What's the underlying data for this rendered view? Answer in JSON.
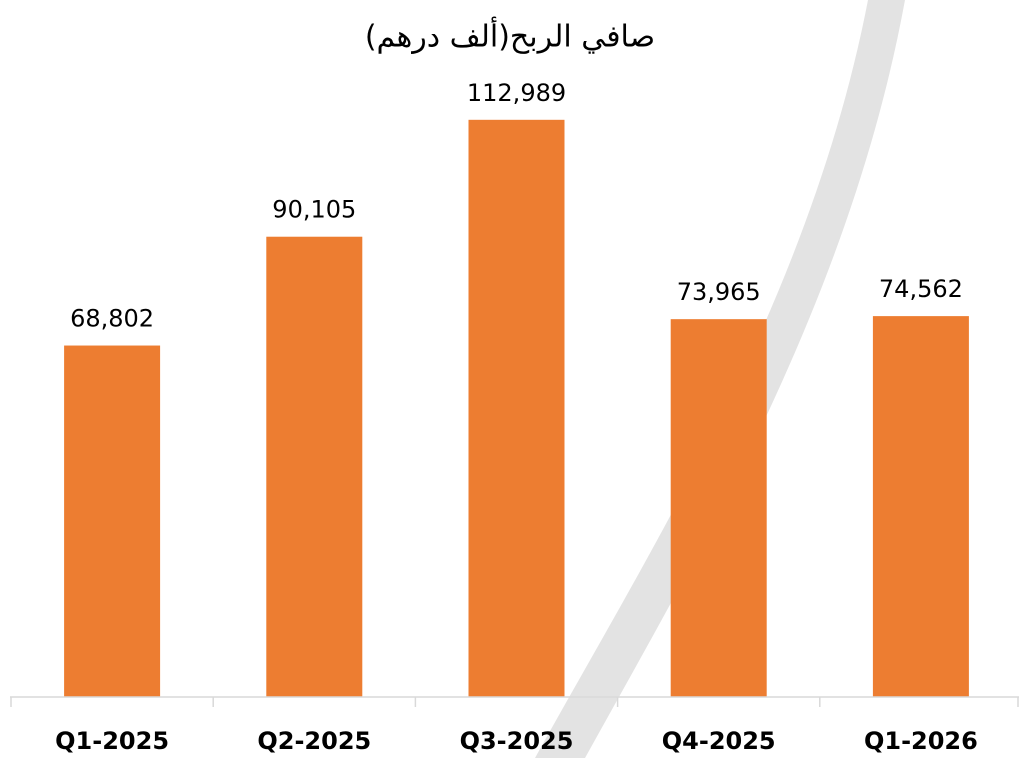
{
  "chart_data": {
    "type": "bar",
    "title": "صافي الربح(ألف درهم)",
    "categories": [
      "Q1-2025",
      "Q2-2025",
      "Q3-2025",
      "Q4-2025",
      "Q1-2026"
    ],
    "values": [
      68802,
      90105,
      112989,
      73965,
      74562
    ],
    "value_labels": [
      "68,802",
      "90,105",
      "112,989",
      "73,965",
      "74,562"
    ],
    "color": "#ed7d31",
    "ylim": [
      0,
      120000
    ]
  }
}
